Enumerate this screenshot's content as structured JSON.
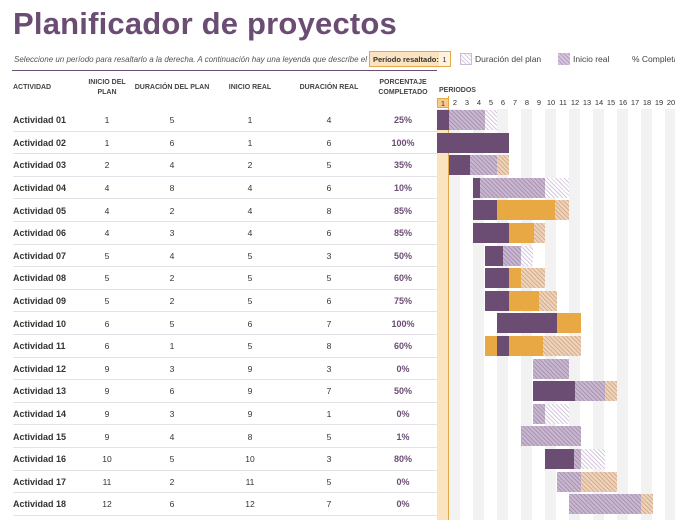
{
  "title": "Planificador de proyectos",
  "subtitle": "Seleccione un período para resaltarlo a la derecha. A continuación hay una leyenda que describe el gráfico.",
  "highlight": {
    "label": "Período resaltado:",
    "value": "1"
  },
  "legend": {
    "plan": "Duración del plan",
    "real": "Inicio real",
    "comp": "% Completado"
  },
  "headers": {
    "activity": "ACTIVIDAD",
    "plan_start": "INICIO DEL PLAN",
    "plan_duration": "DURACIÓN DEL PLAN",
    "real_start": "INICIO REAL",
    "real_duration": "DURACIÓN REAL",
    "percent": "PORCENTAJE COMPLETADO",
    "periods": "PERIODOS"
  },
  "periods": [
    "1",
    "2",
    "3",
    "4",
    "5",
    "6",
    "7",
    "8",
    "9",
    "10",
    "11",
    "12",
    "13",
    "14",
    "15",
    "16",
    "17",
    "18",
    "19",
    "20"
  ],
  "highlighted_period": 1,
  "colors": {
    "accent": "#6b4d73",
    "highlight": "#fbe3bf",
    "orange": "#e8a944"
  },
  "activities": [
    {
      "name": "Actividad 01",
      "plan_start": "1",
      "plan_dur": "5",
      "real_start": "1",
      "real_dur": "4",
      "pct": "25%",
      "ps": 1,
      "pd": 5,
      "rs": 1,
      "rd": 4,
      "p": 0.25
    },
    {
      "name": "Actividad 02",
      "plan_start": "1",
      "plan_dur": "6",
      "real_start": "1",
      "real_dur": "6",
      "pct": "100%",
      "ps": 1,
      "pd": 6,
      "rs": 1,
      "rd": 6,
      "p": 1.0
    },
    {
      "name": "Actividad 03",
      "plan_start": "2",
      "plan_dur": "4",
      "real_start": "2",
      "real_dur": "5",
      "pct": "35%",
      "ps": 2,
      "pd": 4,
      "rs": 2,
      "rd": 5,
      "p": 0.35
    },
    {
      "name": "Actividad 04",
      "plan_start": "4",
      "plan_dur": "8",
      "real_start": "4",
      "real_dur": "6",
      "pct": "10%",
      "ps": 4,
      "pd": 8,
      "rs": 4,
      "rd": 6,
      "p": 0.1
    },
    {
      "name": "Actividad 05",
      "plan_start": "4",
      "plan_dur": "2",
      "real_start": "4",
      "real_dur": "8",
      "pct": "85%",
      "ps": 4,
      "pd": 2,
      "rs": 4,
      "rd": 8,
      "p": 0.85
    },
    {
      "name": "Actividad 06",
      "plan_start": "4",
      "plan_dur": "3",
      "real_start": "4",
      "real_dur": "6",
      "pct": "85%",
      "ps": 4,
      "pd": 3,
      "rs": 4,
      "rd": 6,
      "p": 0.85
    },
    {
      "name": "Actividad 07",
      "plan_start": "5",
      "plan_dur": "4",
      "real_start": "5",
      "real_dur": "3",
      "pct": "50%",
      "ps": 5,
      "pd": 4,
      "rs": 5,
      "rd": 3,
      "p": 0.5
    },
    {
      "name": "Actividad 08",
      "plan_start": "5",
      "plan_dur": "2",
      "real_start": "5",
      "real_dur": "5",
      "pct": "60%",
      "ps": 5,
      "pd": 2,
      "rs": 5,
      "rd": 5,
      "p": 0.6
    },
    {
      "name": "Actividad 09",
      "plan_start": "5",
      "plan_dur": "2",
      "real_start": "5",
      "real_dur": "6",
      "pct": "75%",
      "ps": 5,
      "pd": 2,
      "rs": 5,
      "rd": 6,
      "p": 0.75
    },
    {
      "name": "Actividad 10",
      "plan_start": "6",
      "plan_dur": "5",
      "real_start": "6",
      "real_dur": "7",
      "pct": "100%",
      "ps": 6,
      "pd": 5,
      "rs": 6,
      "rd": 7,
      "p": 1.0
    },
    {
      "name": "Actividad 11",
      "plan_start": "6",
      "plan_dur": "1",
      "real_start": "5",
      "real_dur": "8",
      "pct": "60%",
      "ps": 6,
      "pd": 1,
      "rs": 5,
      "rd": 8,
      "p": 0.6
    },
    {
      "name": "Actividad 12",
      "plan_start": "9",
      "plan_dur": "3",
      "real_start": "9",
      "real_dur": "3",
      "pct": "0%",
      "ps": 9,
      "pd": 3,
      "rs": 9,
      "rd": 3,
      "p": 0.0
    },
    {
      "name": "Actividad 13",
      "plan_start": "9",
      "plan_dur": "6",
      "real_start": "9",
      "real_dur": "7",
      "pct": "50%",
      "ps": 9,
      "pd": 6,
      "rs": 9,
      "rd": 7,
      "p": 0.5
    },
    {
      "name": "Actividad 14",
      "plan_start": "9",
      "plan_dur": "3",
      "real_start": "9",
      "real_dur": "1",
      "pct": "0%",
      "ps": 9,
      "pd": 3,
      "rs": 9,
      "rd": 1,
      "p": 0.0
    },
    {
      "name": "Actividad 15",
      "plan_start": "9",
      "plan_dur": "4",
      "real_start": "8",
      "real_dur": "5",
      "pct": "1%",
      "ps": 9,
      "pd": 4,
      "rs": 8,
      "rd": 5,
      "p": 0.01
    },
    {
      "name": "Actividad 16",
      "plan_start": "10",
      "plan_dur": "5",
      "real_start": "10",
      "real_dur": "3",
      "pct": "80%",
      "ps": 10,
      "pd": 5,
      "rs": 10,
      "rd": 3,
      "p": 0.8
    },
    {
      "name": "Actividad 17",
      "plan_start": "11",
      "plan_dur": "2",
      "real_start": "11",
      "real_dur": "5",
      "pct": "0%",
      "ps": 11,
      "pd": 2,
      "rs": 11,
      "rd": 5,
      "p": 0.0
    },
    {
      "name": "Actividad 18",
      "plan_start": "12",
      "plan_dur": "6",
      "real_start": "12",
      "real_dur": "7",
      "pct": "0%",
      "ps": 12,
      "pd": 6,
      "rs": 12,
      "rd": 7,
      "p": 0.0
    }
  ]
}
